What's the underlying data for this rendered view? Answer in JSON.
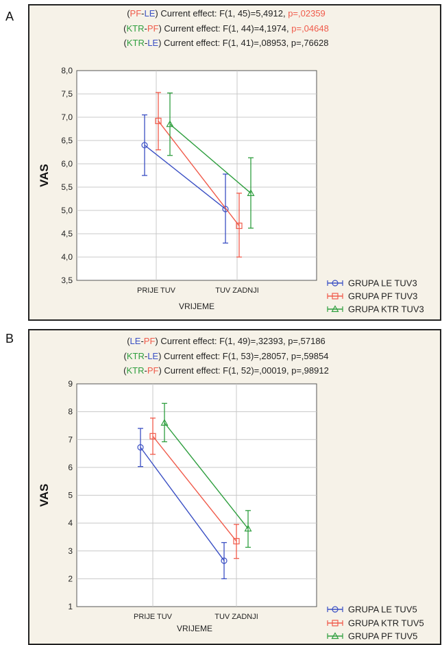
{
  "colors": {
    "LE": "#3a4fc4",
    "PF": "#f05a4a",
    "KTR": "#2e9e3e",
    "text": "#222222",
    "grid": "#c8c8c8"
  },
  "panels": [
    {
      "letter": "A",
      "stats": [
        {
          "a": "PF",
          "b": "LE",
          "rest": " Current effect: F(1, 45)=5,4912, ",
          "p": "p=,02359",
          "p_color": "PF"
        },
        {
          "a": "KTR",
          "b": "PF",
          "rest": " Current effect: F(1, 44)=4,1974, ",
          "p": "p=,04648",
          "p_color": "PF"
        },
        {
          "a": "KTR",
          "b": "LE",
          "rest": " Current effect: F(1, 41)=,08953, ",
          "p": "p=,76628",
          "p_color": "text"
        }
      ]
    },
    {
      "letter": "B",
      "stats": [
        {
          "a": "LE",
          "b": "PF",
          "rest": " Current effect: F(1, 49)=,32393, ",
          "p": "p=,57186",
          "p_color": "text"
        },
        {
          "a": "KTR",
          "b": "LE",
          "rest": " Current effect: F(1, 53)=,28057, ",
          "p": "p=,59854",
          "p_color": "text"
        },
        {
          "a": "KTR",
          "b": "PF",
          "rest": " Current effect: F(1, 52)=,00019, ",
          "p": "p=,98912",
          "p_color": "text"
        }
      ]
    }
  ],
  "chart_data": [
    {
      "type": "line",
      "xlabel": "VRIJEME",
      "ylabel": "VAS",
      "categories": [
        "PRIJE TUV",
        "TUV ZADNJI"
      ],
      "ylim": [
        3.5,
        8.0
      ],
      "yticks": [
        "3,5",
        "4,0",
        "4,5",
        "5,0",
        "5,5",
        "6,0",
        "6,5",
        "7,0",
        "7,5",
        "8,0"
      ],
      "ytick_values": [
        3.5,
        4.0,
        4.5,
        5.0,
        5.5,
        6.0,
        6.5,
        7.0,
        7.5,
        8.0
      ],
      "grid": true,
      "legend_position": "bottom-right",
      "series": [
        {
          "name": "GRUPA LE TUV3",
          "color_key": "LE",
          "marker": "circle",
          "values": [
            6.4,
            5.03
          ],
          "lower": [
            5.75,
            4.3
          ],
          "upper": [
            7.05,
            5.78
          ]
        },
        {
          "name": "GRUPA PF TUV3",
          "color_key": "PF",
          "marker": "square",
          "values": [
            6.92,
            4.67
          ],
          "lower": [
            6.3,
            4.0
          ],
          "upper": [
            7.53,
            5.37
          ]
        },
        {
          "name": "GRUPA KTR TUV3",
          "color_key": "KTR",
          "marker": "triangle",
          "values": [
            6.85,
            5.37
          ],
          "lower": [
            6.18,
            4.62
          ],
          "upper": [
            7.52,
            6.13
          ]
        }
      ]
    },
    {
      "type": "line",
      "xlabel": "VRIJEME",
      "ylabel": "VAS",
      "categories": [
        "PRIJE TUV",
        "TUV ZADNJI"
      ],
      "ylim": [
        1,
        9
      ],
      "yticks": [
        "1",
        "2",
        "3",
        "4",
        "5",
        "6",
        "7",
        "8",
        "9"
      ],
      "ytick_values": [
        1,
        2,
        3,
        4,
        5,
        6,
        7,
        8,
        9
      ],
      "grid": true,
      "legend_position": "bottom-right",
      "series": [
        {
          "name": "GRUPA LE TUV5",
          "color_key": "LE",
          "marker": "circle",
          "values": [
            6.72,
            2.65
          ],
          "lower": [
            6.03,
            2.0
          ],
          "upper": [
            7.4,
            3.3
          ]
        },
        {
          "name": "GRUPA KTR TUV5",
          "color_key": "PF",
          "marker": "square",
          "values": [
            7.12,
            3.35
          ],
          "lower": [
            6.47,
            2.73
          ],
          "upper": [
            7.77,
            3.95
          ]
        },
        {
          "name": "GRUPA PF TUV5",
          "color_key": "KTR",
          "marker": "triangle",
          "values": [
            7.6,
            3.8
          ],
          "lower": [
            6.92,
            3.13
          ],
          "upper": [
            8.3,
            4.45
          ]
        }
      ]
    }
  ]
}
